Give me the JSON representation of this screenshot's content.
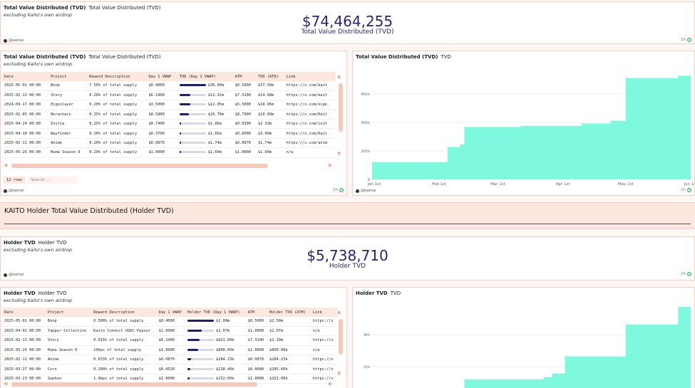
{
  "tvd_number": {
    "title": "Total Value Distributed (TVD)",
    "tab": "Total Value Distributed (TVD)",
    "subtitle": "excluding Kaito's own airdrop",
    "value": "$74,464,255",
    "label": "Total Value Distributed (TVD)",
    "watermark": "@kaimai",
    "age": "2h"
  },
  "tvd_table": {
    "title": "Total Value Distributed (TVD)",
    "tab": "Total Value Distributed (TVD)",
    "subtitle": "excluding Kaito's own airdrop",
    "columns": [
      "Date",
      "Project",
      "Reward Description",
      "Day 1 VWAP",
      "TVD (Day 1 VWAP)",
      "ATH",
      "TVD (ATH)",
      "Link"
    ],
    "rows": [
      {
        "date": "2025-05-01 00:00",
        "project": "Boop",
        "desc": "7.50% of total supply",
        "vwap": "$0.4000",
        "tvd": "$30.00m",
        "fill": 1.0,
        "ath": "$0.5000",
        "tvd_ath": "$37.50m",
        "link": "https://x.com/kait"
      },
      {
        "date": "2025-02-13 00:00",
        "project": "Story",
        "desc": "0.20% of total supply",
        "vwap": "$6.1400",
        "tvd": "$12.32m",
        "fill": 0.41,
        "ath": "$7.3100",
        "tvd_ath": "$14.68m",
        "link": "https://x.com/kait"
      },
      {
        "date": "2024-09-17 00:00",
        "project": "Eigenlayer",
        "desc": "0.20% of total supply",
        "vwap": "$3.5000",
        "tvd": "$12.05m",
        "fill": 0.4,
        "ath": "$5.5000",
        "tvd_ath": "$18.95m",
        "link": "https://x.com/eige"
      },
      {
        "date": "2025-02-05 00:00",
        "project": "Berachain",
        "desc": "0.25% of total supply",
        "vwap": "$8.5800",
        "tvd": "$10.70m",
        "fill": 0.36,
        "ath": "$8.7900",
        "tvd_ath": "$10.99m",
        "link": "https://x.com/Kait"
      },
      {
        "date": "2025-04-24 00:00",
        "project": "Initia",
        "desc": "0.25% of total supply",
        "vwap": "$0.7400",
        "tvd": "$1.86m",
        "fill": 0.06,
        "ath": "$0.9300",
        "tvd_ath": "$2.33m",
        "link": "https://x.com/init"
      },
      {
        "date": "2025-04-10 00:00",
        "project": "Wayfinder",
        "desc": "0.30% of total supply",
        "vwap": "$0.3700",
        "tvd": "$1.85m",
        "fill": 0.06,
        "ath": "$0.6000",
        "tvd_ath": "$3.00m",
        "link": "https://x.com/Kait"
      },
      {
        "date": "2025-02-11 00:00",
        "project": "Anime",
        "desc": "0.20% of total supply",
        "vwap": "$0.0870",
        "tvd": "$1.74m",
        "fill": 0.06,
        "ath": "$0.0870",
        "tvd_ath": "$1.74m",
        "link": "https://x.com/anim"
      },
      {
        "date": "2025-05-26 00:00",
        "project": "Huma Season 0",
        "desc": "0.20% of total supply",
        "vwap": "$1.0000",
        "tvd": "$1.60m",
        "fill": 0.05,
        "ath": "$1.0000",
        "tvd_ath": "$1.60m",
        "link": "n/a"
      }
    ],
    "rows_label": "12 rows",
    "search_placeholder": "Search...",
    "watermark": "@kaimai",
    "age": "2h"
  },
  "tvd_chart": {
    "title": "Total Value Distributed (TVD)",
    "tab": "TVD",
    "watermark": "@kaimai",
    "age": "2h"
  },
  "holder_section": {
    "heading": "KAITO Holder Total Value Distributed (Holder TVD)"
  },
  "holder_number": {
    "title": "Holder TVD",
    "tab": "Holder TVD",
    "subtitle": "excluding Kaito's own airdrop",
    "value": "$5,738,710",
    "label": "Holder TVD",
    "watermark": "@kaimai",
    "age": "2h"
  },
  "holder_table": {
    "title": "Holder TVD",
    "tab": "Holder TVD",
    "subtitle": "excluding Kaito's own airdrop",
    "columns": [
      "Date",
      "Project",
      "Reward Description",
      "Day 1 VWAP",
      "Holder TVD (Day 1 VWAP)",
      "ATH",
      "Holder TVD (ATH)",
      "Link"
    ],
    "rows": [
      {
        "date": "2025-05-01 00:00",
        "project": "Boop",
        "desc": "0.500% of total supply",
        "vwap": "$0.4000",
        "tvd": "$2.00m",
        "fill": 1.0,
        "ath": "$0.5000",
        "tvd_ath": "$2.50m",
        "link": "https://x"
      },
      {
        "date": "2025-04-02 00:00",
        "project": "Yapper Collective",
        "desc": "Kaito Connect USDC Payout",
        "vwap": "$1.0000",
        "tvd": "$1.07m",
        "fill": 0.54,
        "ath": "$1.0000",
        "tvd_ath": "$1.07m",
        "link": "n/a"
      },
      {
        "date": "2025-02-13 00:00",
        "project": "Story",
        "desc": "0.015% of total supply",
        "vwap": "$6.1400",
        "tvd": "$921.00k",
        "fill": 0.46,
        "ath": "$7.3100",
        "tvd_ath": "$1.10m",
        "link": "https://x"
      },
      {
        "date": "2025-05-26 00:00",
        "project": "Huma Season 0",
        "desc": "10bps of total supply",
        "vwap": "$1.0000",
        "tvd": "$800.00k",
        "fill": 0.4,
        "ath": "$1.0000",
        "tvd_ath": "$800.00k",
        "link": "n/a"
      },
      {
        "date": "2025-02-11 00:00",
        "project": "Anime",
        "desc": "0.033% of total supply",
        "vwap": "$0.0870",
        "tvd": "$284.23k",
        "fill": 0.14,
        "ath": "$0.0870",
        "tvd_ath": "$284.23k",
        "link": "https://x"
      },
      {
        "date": "2025-03-27 00:00",
        "project": "Corn",
        "desc": "0.200% of total supply",
        "vwap": "$0.0520",
        "tvd": "$218.40k",
        "fill": 0.11,
        "ath": "$0.0680",
        "tvd_ath": "$285.60k",
        "link": "https://x"
      },
      {
        "date": "2025-03-23 00:00",
        "project": "Sophon",
        "desc": "1.9bps of total supply",
        "vwap": "$1.0000",
        "tvd": "$152.00k",
        "fill": 0.08,
        "ath": "$1.0000",
        "tvd_ath": "$152.00k",
        "link": "https://x"
      }
    ]
  },
  "holder_chart": {
    "title": "Holder TVD",
    "tab": "TVD"
  },
  "chart_data": [
    {
      "type": "area",
      "x": [
        "2024-12-31",
        "2025-01-15",
        "2025-02-01",
        "2025-02-05",
        "2025-02-11",
        "2025-02-13",
        "2025-03-12",
        "2025-04-10",
        "2025-04-24",
        "2025-05-01",
        "2025-05-26",
        "2025-06-01"
      ],
      "values": [
        12.05,
        12.05,
        12.05,
        22.75,
        24.5,
        36.8,
        37.5,
        39.3,
        41.2,
        71.2,
        72.8,
        74.5
      ],
      "xticks": [
        "Jan 1st",
        "Feb 1st",
        "Mar 1st",
        "Apr 1st",
        "May 1st",
        "Jun 1st"
      ],
      "yticks": [
        "0",
        "20m",
        "40m",
        "60m"
      ],
      "ylim": [
        0,
        80
      ],
      "color": "#7ef9dd"
    },
    {
      "type": "area",
      "x": [
        "2025-02-11",
        "2025-02-13",
        "2025-03-23",
        "2025-03-27",
        "2025-04-02",
        "2025-05-01",
        "2025-05-26"
      ],
      "values": [
        0.28,
        1.2,
        1.35,
        1.57,
        2.64,
        4.64,
        5.74
      ],
      "yticks": [
        "2m",
        "4m"
      ],
      "ylim": [
        0,
        6.5
      ],
      "color": "#7ef9dd"
    }
  ]
}
